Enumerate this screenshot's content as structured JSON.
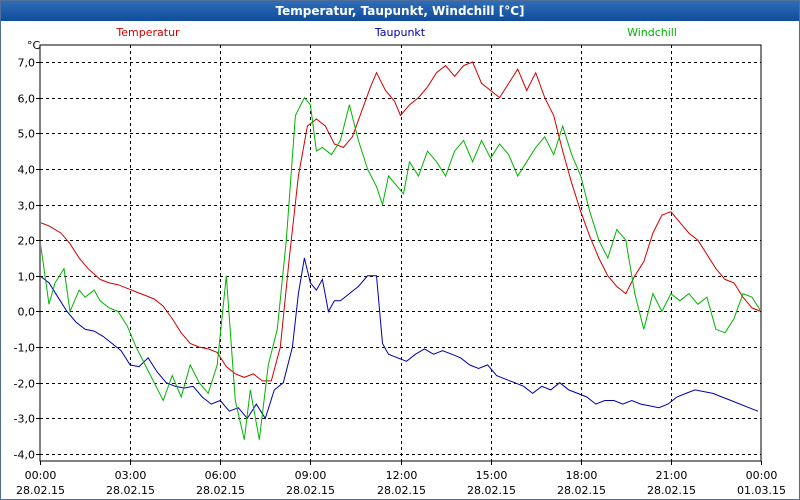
{
  "window": {
    "title": "Temperatur, Taupunkt, Windchill [°C]"
  },
  "chart_data": {
    "type": "line",
    "title": "Temperatur, Taupunkt, Windchill [°C]",
    "ylabel": "°C",
    "xlabel": "",
    "ylim": [
      -4.0,
      7.0
    ],
    "xlim": [
      0,
      24
    ],
    "grid": true,
    "yticks": [
      {
        "v": 7,
        "label": "7,0"
      },
      {
        "v": 6,
        "label": "6,0"
      },
      {
        "v": 5,
        "label": "5,0"
      },
      {
        "v": 4,
        "label": "4,0"
      },
      {
        "v": 3,
        "label": "3,0"
      },
      {
        "v": 2,
        "label": "2,0"
      },
      {
        "v": 1,
        "label": "1,0"
      },
      {
        "v": 0,
        "label": "0,0"
      },
      {
        "v": -1,
        "label": "-1,0"
      },
      {
        "v": -2,
        "label": "-2,0"
      },
      {
        "v": -3,
        "label": "-3,0"
      },
      {
        "v": -4,
        "label": "-4,0"
      }
    ],
    "xticks": [
      {
        "v": 0,
        "time": "00:00",
        "date": "28.02.15"
      },
      {
        "v": 3,
        "time": "03:00",
        "date": "28.02.15"
      },
      {
        "v": 6,
        "time": "06:00",
        "date": "28.02.15"
      },
      {
        "v": 9,
        "time": "09:00",
        "date": "28.02.15"
      },
      {
        "v": 12,
        "time": "12:00",
        "date": "28.02.15"
      },
      {
        "v": 15,
        "time": "15:00",
        "date": "28.02.15"
      },
      {
        "v": 18,
        "time": "18:00",
        "date": "28.02.15"
      },
      {
        "v": 21,
        "time": "21:00",
        "date": "28.02.15"
      },
      {
        "v": 24,
        "time": "00:00",
        "date": "01.03.15"
      }
    ],
    "series": [
      {
        "name": "Temperatur",
        "color": "#d40000",
        "x": [
          0,
          0.3,
          0.7,
          1.0,
          1.3,
          1.6,
          2.0,
          2.3,
          2.6,
          2.9,
          3.2,
          3.5,
          3.8,
          4.1,
          4.4,
          4.7,
          5.0,
          5.3,
          5.6,
          5.9,
          6.2,
          6.5,
          6.8,
          7.1,
          7.4,
          7.7,
          8.0,
          8.3,
          8.6,
          8.9,
          9.2,
          9.5,
          9.8,
          10.1,
          10.4,
          10.7,
          11.0,
          11.2,
          11.5,
          11.8,
          12.0,
          12.3,
          12.6,
          12.9,
          13.2,
          13.5,
          13.8,
          14.1,
          14.4,
          14.7,
          15.0,
          15.3,
          15.6,
          15.9,
          16.2,
          16.5,
          16.8,
          17.1,
          17.4,
          17.7,
          18.0,
          18.3,
          18.6,
          18.9,
          19.2,
          19.5,
          19.8,
          20.1,
          20.4,
          20.7,
          21.0,
          21.3,
          21.6,
          21.9,
          22.2,
          22.5,
          22.8,
          23.1,
          23.4,
          23.7,
          24.0
        ],
        "values": [
          2.5,
          2.4,
          2.2,
          1.9,
          1.5,
          1.2,
          0.9,
          0.8,
          0.75,
          0.65,
          0.55,
          0.45,
          0.35,
          0.15,
          -0.2,
          -0.6,
          -0.9,
          -1.0,
          -1.05,
          -1.15,
          -1.55,
          -1.75,
          -1.85,
          -1.75,
          -1.95,
          -1.95,
          -1.0,
          1.5,
          3.8,
          5.2,
          5.4,
          5.2,
          4.7,
          4.6,
          4.9,
          5.6,
          6.3,
          6.7,
          6.2,
          5.9,
          5.5,
          5.8,
          6.0,
          6.3,
          6.7,
          6.9,
          6.6,
          6.9,
          7.0,
          6.4,
          6.2,
          6.0,
          6.4,
          6.8,
          6.2,
          6.7,
          6.0,
          5.5,
          4.5,
          3.6,
          2.8,
          2.1,
          1.5,
          1.0,
          0.7,
          0.5,
          1.0,
          1.4,
          2.2,
          2.7,
          2.8,
          2.5,
          2.2,
          2.0,
          1.6,
          1.2,
          0.9,
          0.8,
          0.4,
          0.1,
          0.0
        ]
      },
      {
        "name": "Taupunkt",
        "color": "#0000b0",
        "x": [
          0,
          0.3,
          0.6,
          0.9,
          1.2,
          1.5,
          1.8,
          2.1,
          2.4,
          2.7,
          3.0,
          3.3,
          3.6,
          3.9,
          4.2,
          4.5,
          4.8,
          5.1,
          5.4,
          5.7,
          6.0,
          6.3,
          6.6,
          6.9,
          7.2,
          7.5,
          7.8,
          8.1,
          8.4,
          8.6,
          8.8,
          9.0,
          9.2,
          9.4,
          9.6,
          9.8,
          10.0,
          10.3,
          10.6,
          10.9,
          11.2,
          11.4,
          11.6,
          11.9,
          12.2,
          12.5,
          12.8,
          13.1,
          13.4,
          13.7,
          14.0,
          14.3,
          14.6,
          14.9,
          15.2,
          15.5,
          15.8,
          16.1,
          16.4,
          16.7,
          17.0,
          17.3,
          17.6,
          17.9,
          18.2,
          18.5,
          18.8,
          19.1,
          19.4,
          19.7,
          20.0,
          20.3,
          20.6,
          20.9,
          21.2,
          21.5,
          21.8,
          22.1,
          22.4,
          22.7,
          23.0,
          23.3,
          23.6,
          23.9
        ],
        "values": [
          1.0,
          0.8,
          0.4,
          0.0,
          -0.3,
          -0.5,
          -0.55,
          -0.7,
          -0.9,
          -1.1,
          -1.5,
          -1.55,
          -1.3,
          -1.7,
          -2.0,
          -2.1,
          -2.15,
          -2.1,
          -2.4,
          -2.6,
          -2.5,
          -2.8,
          -2.7,
          -3.0,
          -2.6,
          -3.0,
          -2.2,
          -2.0,
          -1.0,
          0.5,
          1.5,
          0.8,
          0.6,
          0.9,
          0.0,
          0.3,
          0.3,
          0.5,
          0.7,
          1.0,
          1.0,
          -0.9,
          -1.2,
          -1.3,
          -1.4,
          -1.2,
          -1.05,
          -1.2,
          -1.1,
          -1.2,
          -1.3,
          -1.5,
          -1.6,
          -1.5,
          -1.8,
          -1.9,
          -2.0,
          -2.1,
          -2.3,
          -2.1,
          -2.2,
          -2.0,
          -2.2,
          -2.3,
          -2.4,
          -2.6,
          -2.5,
          -2.5,
          -2.6,
          -2.5,
          -2.6,
          -2.65,
          -2.7,
          -2.6,
          -2.4,
          -2.3,
          -2.2,
          -2.25,
          -2.3,
          -2.4,
          -2.5,
          -2.6,
          -2.7,
          -2.8
        ]
      },
      {
        "name": "Windchill",
        "color": "#00b400",
        "x": [
          0,
          0.3,
          0.5,
          0.8,
          1.0,
          1.3,
          1.5,
          1.8,
          2.0,
          2.3,
          2.6,
          2.9,
          3.2,
          3.5,
          3.8,
          4.1,
          4.4,
          4.7,
          5.0,
          5.3,
          5.6,
          5.9,
          6.2,
          6.5,
          6.8,
          7.0,
          7.3,
          7.6,
          7.9,
          8.2,
          8.5,
          8.8,
          9.0,
          9.2,
          9.4,
          9.7,
          10.0,
          10.3,
          10.6,
          10.9,
          11.2,
          11.4,
          11.6,
          11.9,
          12.1,
          12.3,
          12.6,
          12.9,
          13.2,
          13.5,
          13.8,
          14.1,
          14.4,
          14.7,
          15.0,
          15.3,
          15.6,
          15.9,
          16.2,
          16.5,
          16.8,
          17.1,
          17.4,
          17.7,
          18.0,
          18.3,
          18.6,
          18.9,
          19.2,
          19.5,
          19.8,
          20.1,
          20.4,
          20.7,
          21.0,
          21.3,
          21.6,
          21.9,
          22.2,
          22.5,
          22.8,
          23.1,
          23.4,
          23.7,
          24.0
        ],
        "values": [
          2.0,
          0.2,
          0.8,
          1.2,
          0.0,
          0.6,
          0.4,
          0.6,
          0.3,
          0.1,
          0.0,
          -0.4,
          -1.0,
          -1.5,
          -2.0,
          -2.5,
          -1.8,
          -2.4,
          -1.5,
          -2.0,
          -2.3,
          -1.5,
          1.0,
          -2.5,
          -3.6,
          -2.2,
          -3.6,
          -1.5,
          -0.5,
          2.0,
          5.5,
          6.0,
          5.8,
          4.5,
          4.6,
          4.4,
          4.8,
          5.8,
          4.8,
          4.0,
          3.5,
          3.0,
          3.8,
          3.5,
          3.3,
          4.2,
          3.8,
          4.5,
          4.2,
          3.8,
          4.5,
          4.8,
          4.2,
          4.8,
          4.3,
          4.7,
          4.4,
          3.8,
          4.2,
          4.6,
          4.9,
          4.4,
          5.2,
          4.4,
          3.8,
          2.8,
          2.0,
          1.5,
          2.3,
          2.0,
          0.5,
          -0.5,
          0.5,
          0.0,
          0.5,
          0.3,
          0.5,
          0.2,
          0.4,
          -0.5,
          -0.6,
          -0.2,
          0.5,
          0.4,
          0.0
        ]
      }
    ]
  }
}
